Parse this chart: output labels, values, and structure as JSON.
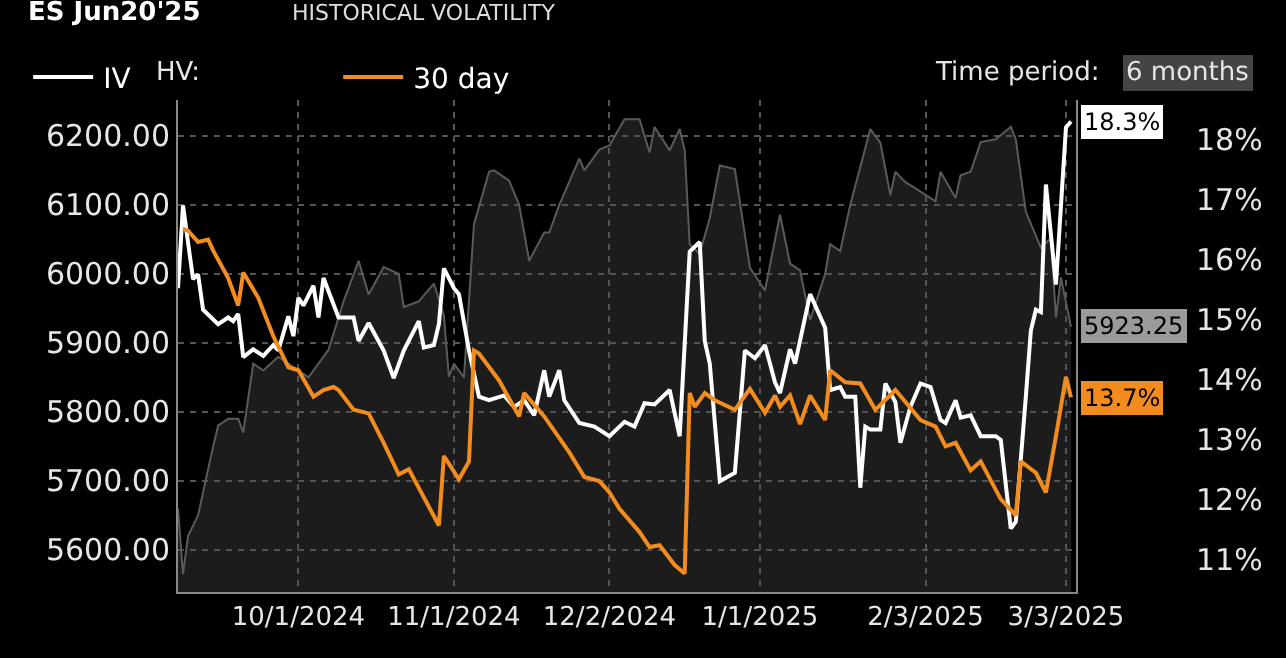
{
  "chart_data": {
    "type": "line",
    "title": "ES Jun20'25",
    "subtitle": "HISTORICAL VOLATILITY",
    "annotations": [
      "HV:",
      "Time period:",
      "6 months"
    ],
    "xlim": [
      "2024-09-07",
      "2025-03-05"
    ],
    "xticks": [
      {
        "value": "2024-10-01",
        "label": "10/1/2024"
      },
      {
        "value": "2024-11-01",
        "label": "11/1/2024"
      },
      {
        "value": "2024-12-02",
        "label": "12/2/2024"
      },
      {
        "value": "2025-01-01",
        "label": "1/1/2025"
      },
      {
        "value": "2025-02-03",
        "label": "2/3/2025"
      },
      {
        "value": "2025-03-03",
        "label": "3/3/2025"
      }
    ],
    "ylim": [
      5539,
      6252
    ],
    "yticks": [
      {
        "value": 5600,
        "label": "5600.00"
      },
      {
        "value": 5700,
        "label": "5700.00"
      },
      {
        "value": 5800,
        "label": "5800.00"
      },
      {
        "value": 5900,
        "label": "5900.00"
      },
      {
        "value": 6000,
        "label": "6000.00"
      },
      {
        "value": 6100,
        "label": "6100.00"
      },
      {
        "value": 6200,
        "label": "6200.00"
      }
    ],
    "y2lim": [
      10.45,
      18.66
    ],
    "y2ticks": [
      {
        "value": 11,
        "label": "11%"
      },
      {
        "value": 12,
        "label": "12%"
      },
      {
        "value": 13,
        "label": "13%"
      },
      {
        "value": 14,
        "label": "14%"
      },
      {
        "value": 15,
        "label": "15%"
      },
      {
        "value": 16,
        "label": "16%"
      },
      {
        "value": 17,
        "label": "17%"
      },
      {
        "value": 18,
        "label": "18%"
      }
    ],
    "grid": true,
    "legend": "top left",
    "marker": "none",
    "line_style": "solid",
    "series": [
      {
        "type": "area",
        "color": "#5a5a5a",
        "axis": "y",
        "x": [
          "2024-09-07",
          "2024-09-08",
          "2024-09-09",
          "2024-09-11",
          "2024-09-14",
          "2024-09-15",
          "2024-09-17",
          "2024-09-19",
          "2024-09-20",
          "2024-09-22",
          "2024-09-24",
          "2024-09-27",
          "2024-10-03",
          "2024-10-07",
          "2024-10-10",
          "2024-10-13",
          "2024-10-15",
          "2024-10-18",
          "2024-10-21",
          "2024-10-22",
          "2024-10-25",
          "2024-10-28",
          "2024-10-30",
          "2024-10-31",
          "2024-11-01",
          "2024-11-03",
          "2024-11-05",
          "2024-11-08",
          "2024-11-09",
          "2024-11-12",
          "2024-11-14",
          "2024-11-16",
          "2024-11-19",
          "2024-11-20",
          "2024-11-22",
          "2024-11-26",
          "2024-11-27",
          "2024-11-30",
          "2024-12-02",
          "2024-12-05",
          "2024-12-08",
          "2024-12-10",
          "2024-12-11",
          "2024-12-14",
          "2024-12-16",
          "2024-12-17",
          "2024-12-18",
          "2024-12-20",
          "2024-12-22",
          "2024-12-24",
          "2024-12-27",
          "2024-12-30",
          "2025-01-02",
          "2025-01-05",
          "2025-01-07",
          "2025-01-09",
          "2025-01-11",
          "2025-01-14",
          "2025-01-15",
          "2025-01-17",
          "2025-01-19",
          "2025-01-23",
          "2025-01-25",
          "2025-01-27",
          "2025-01-28",
          "2025-01-30",
          "2025-02-01",
          "2025-02-05",
          "2025-02-06",
          "2025-02-09",
          "2025-02-10",
          "2025-02-12",
          "2025-02-14",
          "2025-02-17",
          "2025-02-20",
          "2025-02-21",
          "2025-02-23",
          "2025-02-26",
          "2025-02-28",
          "2025-03-01",
          "2025-03-02",
          "2025-03-04"
        ],
        "values": [
          5660,
          5565,
          5620,
          5650,
          5750,
          5780,
          5790,
          5790,
          5770,
          5870,
          5860,
          5880,
          5850,
          5890,
          5960,
          6019,
          5970,
          6010,
          6000,
          5952,
          5960,
          5986,
          5940,
          5851,
          5870,
          5850,
          6072,
          6148,
          6150,
          6135,
          6100,
          6019,
          6060,
          6060,
          6100,
          6167,
          6150,
          6180,
          6186,
          6224,
          6224,
          6176,
          6213,
          6179,
          6210,
          6179,
          6043,
          6029,
          6081,
          6157,
          6152,
          6009,
          5976,
          6086,
          6015,
          6005,
          5933,
          6000,
          6043,
          6033,
          6100,
          6210,
          6190,
          6114,
          6148,
          6133,
          6124,
          6105,
          6148,
          6110,
          6143,
          6148,
          6191,
          6195,
          6213,
          6195,
          6090,
          6038,
          6052,
          5937,
          5995,
          5923.25
        ],
        "value_labels": [
          null,
          null,
          null,
          null,
          null,
          null,
          null,
          null,
          null,
          null,
          null,
          null,
          null,
          null,
          null,
          null,
          null,
          null,
          null,
          null,
          null,
          null,
          null,
          null,
          null,
          null,
          null,
          null,
          null,
          null,
          null,
          null,
          null,
          null,
          null,
          null,
          null,
          null,
          null,
          null,
          null,
          null,
          null,
          null,
          null,
          null,
          null,
          null,
          null,
          null,
          null,
          null,
          null,
          null,
          null,
          null,
          null,
          null,
          null,
          null,
          null,
          null,
          null,
          null,
          null,
          null,
          null,
          null,
          null,
          null,
          null,
          null,
          null,
          null,
          null,
          null,
          null,
          null,
          null,
          null,
          null,
          "5923.25"
        ]
      },
      {
        "name": "IV",
        "type": "line",
        "color": "#ffffff",
        "axis": "y2",
        "x": [
          "2024-09-07",
          "2024-09-08",
          "2024-09-10",
          "2024-09-11",
          "2024-09-12",
          "2024-09-15",
          "2024-09-17",
          "2024-09-18",
          "2024-09-19",
          "2024-09-20",
          "2024-09-22",
          "2024-09-24",
          "2024-09-26",
          "2024-09-27",
          "2024-09-29",
          "2024-09-30",
          "2024-10-01",
          "2024-10-02",
          "2024-10-04",
          "2024-10-05",
          "2024-10-06",
          "2024-10-09",
          "2024-10-12",
          "2024-10-13",
          "2024-10-15",
          "2024-10-18",
          "2024-10-20",
          "2024-10-22",
          "2024-10-25",
          "2024-10-26",
          "2024-10-28",
          "2024-10-29",
          "2024-10-30",
          "2024-11-01",
          "2024-11-02",
          "2024-11-04",
          "2024-11-06",
          "2024-11-08",
          "2024-11-11",
          "2024-11-13",
          "2024-11-15",
          "2024-11-17",
          "2024-11-19",
          "2024-11-20",
          "2024-11-22",
          "2024-11-23",
          "2024-11-26",
          "2024-11-29",
          "2024-12-02",
          "2024-12-05",
          "2024-12-07",
          "2024-12-09",
          "2024-12-11",
          "2024-12-14",
          "2024-12-16",
          "2024-12-18",
          "2024-12-20",
          "2024-12-21",
          "2024-12-22",
          "2024-12-24",
          "2024-12-27",
          "2024-12-29",
          "2024-12-31",
          "2025-01-02",
          "2025-01-04",
          "2025-01-05",
          "2025-01-07",
          "2025-01-08",
          "2025-01-11",
          "2025-01-14",
          "2025-01-15",
          "2025-01-17",
          "2025-01-18",
          "2025-01-20",
          "2025-01-21",
          "2025-01-22",
          "2025-01-23",
          "2025-01-25",
          "2025-01-26",
          "2025-01-28",
          "2025-01-29",
          "2025-01-31",
          "2025-02-02",
          "2025-02-04",
          "2025-02-06",
          "2025-02-07",
          "2025-02-09",
          "2025-02-10",
          "2025-02-12",
          "2025-02-14",
          "2025-02-17",
          "2025-02-18",
          "2025-02-20",
          "2025-02-21",
          "2025-02-23",
          "2025-02-24",
          "2025-02-25",
          "2025-02-26",
          "2025-02-27",
          "2025-03-01",
          "2025-03-03",
          "2025-03-04"
        ],
        "values": [
          15.52,
          16.9,
          15.67,
          15.75,
          15.16,
          14.92,
          15.03,
          14.97,
          15.09,
          14.37,
          14.5,
          14.39,
          14.57,
          14.48,
          15.05,
          14.72,
          15.36,
          15.23,
          15.56,
          15.03,
          15.69,
          15.03,
          15.03,
          14.64,
          14.94,
          14.48,
          14.02,
          14.48,
          14.97,
          14.53,
          14.57,
          14.92,
          15.85,
          15.52,
          15.42,
          14.48,
          13.71,
          13.65,
          13.73,
          13.54,
          13.65,
          13.4,
          14.15,
          13.71,
          14.15,
          13.65,
          13.27,
          13.21,
          13.05,
          13.29,
          13.21,
          13.6,
          13.58,
          13.82,
          13.05,
          16.13,
          16.29,
          14.64,
          14.26,
          12.3,
          12.44,
          14.48,
          14.35,
          14.57,
          13.95,
          13.77,
          14.5,
          14.26,
          15.42,
          14.86,
          13.82,
          13.87,
          13.71,
          13.71,
          12.19,
          13.21,
          13.16,
          13.16,
          13.93,
          13.62,
          12.94,
          13.54,
          13.93,
          13.87,
          13.32,
          13.27,
          13.65,
          13.36,
          13.4,
          13.05,
          13.05,
          12.99,
          11.51,
          11.62,
          13.71,
          14.81,
          15.16,
          15.12,
          17.25,
          15.58,
          18.2,
          18.3
        ],
        "value_labels": [
          null,
          null,
          null,
          null,
          null,
          null,
          null,
          null,
          null,
          null,
          null,
          null,
          null,
          null,
          null,
          null,
          null,
          null,
          null,
          null,
          null,
          null,
          null,
          null,
          null,
          null,
          null,
          null,
          null,
          null,
          null,
          null,
          null,
          null,
          null,
          null,
          null,
          null,
          null,
          null,
          null,
          null,
          null,
          null,
          null,
          null,
          null,
          null,
          null,
          null,
          null,
          null,
          null,
          null,
          null,
          null,
          null,
          null,
          null,
          null,
          null,
          null,
          null,
          null,
          null,
          null,
          null,
          null,
          null,
          null,
          null,
          null,
          null,
          null,
          null,
          null,
          null,
          null,
          null,
          null,
          null,
          null,
          null,
          null,
          null,
          null,
          null,
          null,
          null,
          null,
          null,
          null,
          null,
          null,
          null,
          null,
          null,
          null,
          null,
          null,
          null,
          "18.3%"
        ]
      },
      {
        "name": "30 day",
        "type": "line",
        "color": "#f28c1e",
        "axis": "y2",
        "x": [
          "2024-09-08",
          "2024-09-09",
          "2024-09-11",
          "2024-09-13",
          "2024-09-14",
          "2024-09-17",
          "2024-09-19",
          "2024-09-20",
          "2024-09-23",
          "2024-09-26",
          "2024-09-29",
          "2024-10-01",
          "2024-10-04",
          "2024-10-06",
          "2024-10-08",
          "2024-10-09",
          "2024-10-12",
          "2024-10-15",
          "2024-10-18",
          "2024-10-21",
          "2024-10-23",
          "2024-10-29",
          "2024-10-30",
          "2024-11-02",
          "2024-11-04",
          "2024-11-05",
          "2024-11-06",
          "2024-11-10",
          "2024-11-14",
          "2024-11-15",
          "2024-11-19",
          "2024-11-24",
          "2024-11-27",
          "2024-11-30",
          "2024-12-02",
          "2024-12-04",
          "2024-12-08",
          "2024-12-10",
          "2024-12-12",
          "2024-12-15",
          "2024-12-17",
          "2024-12-18",
          "2024-12-19",
          "2024-12-21",
          "2024-12-23",
          "2024-12-27",
          "2024-12-30",
          "2025-01-02",
          "2025-01-04",
          "2025-01-05",
          "2025-01-07",
          "2025-01-09",
          "2025-01-11",
          "2025-01-14",
          "2025-01-15",
          "2025-01-18",
          "2025-01-21",
          "2025-01-24",
          "2025-01-28",
          "2025-02-02",
          "2025-02-05",
          "2025-02-07",
          "2025-02-09",
          "2025-02-12",
          "2025-02-14",
          "2025-02-18",
          "2025-02-21",
          "2025-02-22",
          "2025-02-25",
          "2025-02-27",
          "2025-03-01",
          "2025-03-03",
          "2025-03-04"
        ],
        "values": [
          16.51,
          16.48,
          16.29,
          16.33,
          16.15,
          15.69,
          15.23,
          15.78,
          15.36,
          14.72,
          14.2,
          14.15,
          13.71,
          13.82,
          13.87,
          13.82,
          13.49,
          13.43,
          12.94,
          12.41,
          12.5,
          11.56,
          12.72,
          12.33,
          12.63,
          14.48,
          14.43,
          13.98,
          13.38,
          13.77,
          13.38,
          12.78,
          12.37,
          12.3,
          12.11,
          11.84,
          11.45,
          11.2,
          11.23,
          10.9,
          10.76,
          13.77,
          13.54,
          13.77,
          13.65,
          13.49,
          13.84,
          13.44,
          13.73,
          13.54,
          13.73,
          13.25,
          13.73,
          13.32,
          14.15,
          13.95,
          13.93,
          13.49,
          13.82,
          13.32,
          13.21,
          12.88,
          12.94,
          12.48,
          12.63,
          12.0,
          11.73,
          12.63,
          12.44,
          12.11,
          13.05,
          14.04,
          13.7
        ],
        "value_labels": [
          null,
          null,
          null,
          null,
          null,
          null,
          null,
          null,
          null,
          null,
          null,
          null,
          null,
          null,
          null,
          null,
          null,
          null,
          null,
          null,
          null,
          null,
          null,
          null,
          null,
          null,
          null,
          null,
          null,
          null,
          null,
          null,
          null,
          null,
          null,
          null,
          null,
          null,
          null,
          null,
          null,
          null,
          null,
          null,
          null,
          null,
          null,
          null,
          null,
          null,
          null,
          null,
          null,
          null,
          null,
          null,
          null,
          null,
          null,
          null,
          null,
          null,
          null,
          null,
          null,
          null,
          null,
          null,
          null,
          null,
          null,
          null,
          "13.7%"
        ]
      }
    ]
  }
}
